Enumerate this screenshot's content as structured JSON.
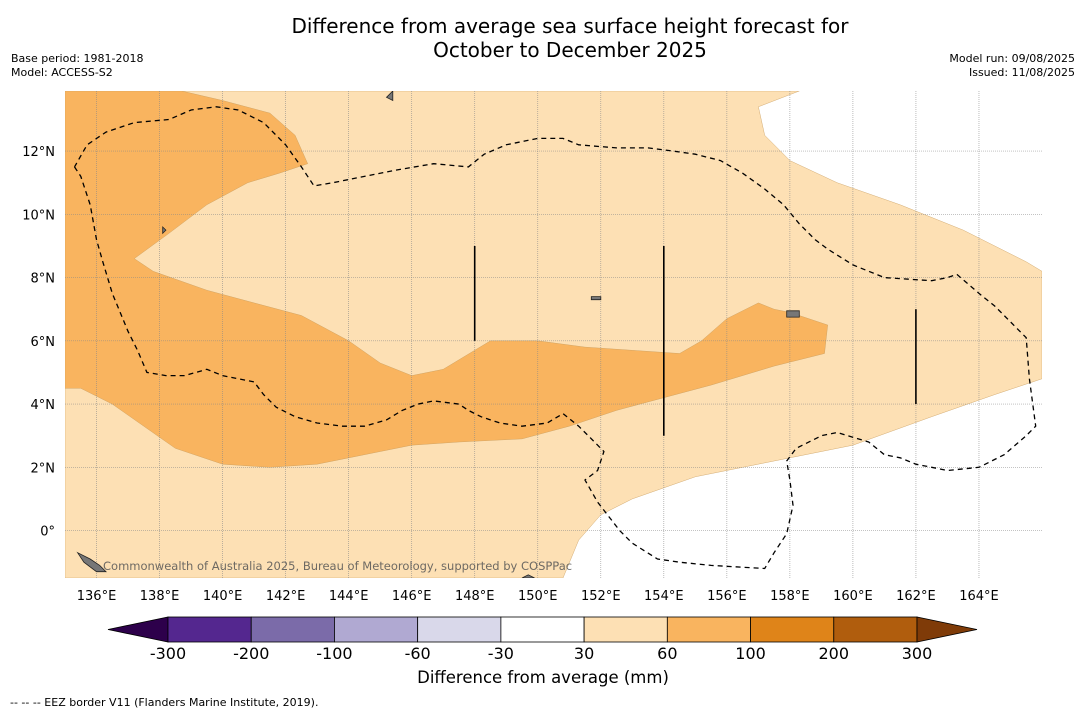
{
  "title_line1": "Difference from average sea surface height forecast for",
  "title_line2": "October to December 2025",
  "meta_left": {
    "base_period": "Base period: 1981-2018",
    "model": "Model: ACCESS-S2"
  },
  "meta_right": {
    "model_run": "Model run: 09/08/2025",
    "issued": "Issued: 11/08/2025"
  },
  "attribution": "Commonwealth of Australia 2025, Bureau of Meteorology, supported by COSPPac",
  "footnote": "--  --  -- EEZ border V11 (Flanders Marine Institute, 2019).",
  "colorbar": {
    "title": "Difference from average (mm)",
    "tick_labels": [
      "-300",
      "-200",
      "-100",
      "-60",
      "-30",
      "30",
      "60",
      "100",
      "200",
      "300"
    ],
    "bins": [
      {
        "from": -300,
        "to": -200,
        "color": "#54278f"
      },
      {
        "from": -200,
        "to": -100,
        "color": "#7b6ba9"
      },
      {
        "from": -100,
        "to": -60,
        "color": "#b0a9d2"
      },
      {
        "from": -60,
        "to": -30,
        "color": "#d9d8ea"
      },
      {
        "from": -30,
        "to": 30,
        "color": "#ffffff"
      },
      {
        "from": 30,
        "to": 60,
        "color": "#fde0b4"
      },
      {
        "from": 60,
        "to": 100,
        "color": "#f9b45f"
      },
      {
        "from": 100,
        "to": 200,
        "color": "#df8419"
      },
      {
        "from": 200,
        "to": 300,
        "color": "#b05d0d"
      }
    ],
    "under_color": "#2d004b",
    "over_color": "#7f3b08"
  },
  "chart_data": {
    "type": "heatmap",
    "projection": "lon-lat",
    "xlim": [
      135.0,
      166.0
    ],
    "ylim": [
      -1.5,
      13.9
    ],
    "x_ticks": [
      136,
      138,
      140,
      142,
      144,
      146,
      148,
      150,
      152,
      154,
      156,
      158,
      160,
      162,
      164
    ],
    "x_tick_labels": [
      "136°E",
      "138°E",
      "140°E",
      "142°E",
      "144°E",
      "146°E",
      "148°E",
      "150°E",
      "152°E",
      "154°E",
      "156°E",
      "158°E",
      "160°E",
      "162°E",
      "164°E"
    ],
    "y_ticks": [
      0,
      2,
      4,
      6,
      8,
      10,
      12
    ],
    "y_tick_labels": [
      "0°",
      "2°N",
      "4°N",
      "6°N",
      "8°N",
      "10°N",
      "12°N"
    ],
    "grid": true,
    "background_category": "-30 to 30",
    "regions": [
      {
        "category": "30 to 60",
        "color": "#fde0b4",
        "coords": [
          [
            135.0,
            13.9
          ],
          [
            158.3,
            13.9
          ],
          [
            157.0,
            13.4
          ],
          [
            157.2,
            12.5
          ],
          [
            158.0,
            11.7
          ],
          [
            159.5,
            11.0
          ],
          [
            161.5,
            10.3
          ],
          [
            163.5,
            9.5
          ],
          [
            165.5,
            8.5
          ],
          [
            166.0,
            8.2
          ],
          [
            166.0,
            4.8
          ],
          [
            164.5,
            4.3
          ],
          [
            162.5,
            3.6
          ],
          [
            160.0,
            2.7
          ],
          [
            157.5,
            2.2
          ],
          [
            155.0,
            1.7
          ],
          [
            153.0,
            1.0
          ],
          [
            152.0,
            0.5
          ],
          [
            151.3,
            -0.3
          ],
          [
            150.8,
            -1.5
          ],
          [
            135.0,
            -1.5
          ]
        ]
      },
      {
        "category": "60 to 100",
        "color": "#f9b45f",
        "coords": [
          [
            135.0,
            13.9
          ],
          [
            138.7,
            13.9
          ],
          [
            140.0,
            13.6
          ],
          [
            141.5,
            13.2
          ],
          [
            142.3,
            12.5
          ],
          [
            142.7,
            11.6
          ],
          [
            141.8,
            11.3
          ],
          [
            140.8,
            11.0
          ],
          [
            139.5,
            10.3
          ],
          [
            138.3,
            9.4
          ],
          [
            137.2,
            8.6
          ],
          [
            137.8,
            8.2
          ],
          [
            139.5,
            7.6
          ],
          [
            141.0,
            7.2
          ],
          [
            142.5,
            6.8
          ],
          [
            144.0,
            6.0
          ],
          [
            145.0,
            5.3
          ],
          [
            146.0,
            4.9
          ],
          [
            147.0,
            5.1
          ],
          [
            148.0,
            5.7
          ],
          [
            148.5,
            6.0
          ],
          [
            150.0,
            6.0
          ],
          [
            151.5,
            5.8
          ],
          [
            153.0,
            5.7
          ],
          [
            154.5,
            5.6
          ],
          [
            155.2,
            6.0
          ],
          [
            156.0,
            6.7
          ],
          [
            157.0,
            7.2
          ],
          [
            157.5,
            7.0
          ],
          [
            158.0,
            6.9
          ],
          [
            159.2,
            6.5
          ],
          [
            159.1,
            5.6
          ],
          [
            157.5,
            5.2
          ],
          [
            155.5,
            4.6
          ],
          [
            154.0,
            4.2
          ],
          [
            152.5,
            3.8
          ],
          [
            151.0,
            3.3
          ],
          [
            149.5,
            2.9
          ],
          [
            147.5,
            2.8
          ],
          [
            146.0,
            2.7
          ],
          [
            144.5,
            2.4
          ],
          [
            143.0,
            2.1
          ],
          [
            141.5,
            2.0
          ],
          [
            140.0,
            2.1
          ],
          [
            138.5,
            2.6
          ],
          [
            137.5,
            3.3
          ],
          [
            136.5,
            4.0
          ],
          [
            135.5,
            4.5
          ],
          [
            135.0,
            4.5
          ]
        ]
      }
    ],
    "eez_segments": [
      [
        [
          135.3,
          11.5
        ],
        [
          135.5,
          11.2
        ],
        [
          135.8,
          10.3
        ],
        [
          136.0,
          9.2
        ],
        [
          136.2,
          8.5
        ],
        [
          136.5,
          7.5
        ],
        [
          137.0,
          6.3
        ],
        [
          137.3,
          5.7
        ],
        [
          137.6,
          5.0
        ],
        [
          138.2,
          4.9
        ],
        [
          138.8,
          4.9
        ],
        [
          139.5,
          5.1
        ],
        [
          140.0,
          4.9
        ],
        [
          140.5,
          4.8
        ],
        [
          141.0,
          4.7
        ],
        [
          141.3,
          4.3
        ],
        [
          141.7,
          3.9
        ],
        [
          142.3,
          3.6
        ],
        [
          143.0,
          3.4
        ],
        [
          143.8,
          3.3
        ],
        [
          144.5,
          3.3
        ],
        [
          145.2,
          3.5
        ],
        [
          145.7,
          3.8
        ],
        [
          146.2,
          4.0
        ],
        [
          146.7,
          4.1
        ],
        [
          147.5,
          4.0
        ],
        [
          147.8,
          3.8
        ],
        [
          148.2,
          3.6
        ],
        [
          148.8,
          3.4
        ],
        [
          149.5,
          3.3
        ],
        [
          150.3,
          3.4
        ],
        [
          150.8,
          3.7
        ],
        [
          151.3,
          3.3
        ],
        [
          151.8,
          2.8
        ],
        [
          152.1,
          2.5
        ],
        [
          151.9,
          1.9
        ],
        [
          151.5,
          1.6
        ],
        [
          151.9,
          0.9
        ],
        [
          152.6,
          0.0
        ],
        [
          153.0,
          -0.4
        ],
        [
          153.8,
          -0.9
        ],
        [
          154.5,
          -1.0
        ],
        [
          155.5,
          -1.1
        ],
        [
          157.2,
          -1.2
        ],
        [
          157.5,
          -0.7
        ],
        [
          157.9,
          -0.1
        ],
        [
          158.1,
          0.8
        ],
        [
          158.0,
          1.6
        ],
        [
          157.9,
          2.2
        ],
        [
          158.2,
          2.6
        ],
        [
          158.8,
          2.9
        ],
        [
          159.0,
          3.0
        ],
        [
          159.5,
          3.1
        ],
        [
          160.5,
          2.8
        ],
        [
          161.0,
          2.4
        ],
        [
          161.5,
          2.3
        ],
        [
          162.0,
          2.1
        ],
        [
          162.5,
          2.0
        ],
        [
          163.0,
          1.9
        ],
        [
          164.0,
          2.0
        ],
        [
          164.8,
          2.4
        ],
        [
          165.5,
          3.0
        ],
        [
          165.8,
          3.3
        ],
        [
          165.6,
          4.8
        ],
        [
          165.5,
          6.1
        ],
        [
          165.0,
          6.6
        ],
        [
          164.5,
          7.1
        ],
        [
          164.0,
          7.5
        ],
        [
          163.3,
          8.1
        ],
        [
          163.0,
          8.0
        ],
        [
          162.5,
          7.9
        ],
        [
          161.0,
          8.0
        ],
        [
          160.0,
          8.4
        ],
        [
          159.2,
          8.9
        ],
        [
          158.8,
          9.2
        ],
        [
          158.3,
          9.7
        ],
        [
          157.8,
          10.3
        ],
        [
          157.2,
          10.8
        ],
        [
          156.5,
          11.3
        ],
        [
          155.8,
          11.7
        ],
        [
          155.0,
          11.9
        ],
        [
          154.3,
          12.0
        ],
        [
          153.5,
          12.1
        ],
        [
          152.5,
          12.1
        ],
        [
          151.3,
          12.2
        ],
        [
          150.8,
          12.4
        ],
        [
          150.0,
          12.4
        ],
        [
          149.0,
          12.2
        ],
        [
          148.3,
          11.9
        ],
        [
          147.8,
          11.5
        ],
        [
          146.7,
          11.6
        ],
        [
          145.5,
          11.4
        ],
        [
          144.5,
          11.2
        ],
        [
          143.5,
          11.0
        ],
        [
          142.9,
          10.9
        ],
        [
          142.5,
          11.5
        ],
        [
          142.0,
          12.2
        ],
        [
          141.3,
          12.9
        ],
        [
          140.5,
          13.3
        ],
        [
          139.8,
          13.4
        ],
        [
          139.0,
          13.3
        ],
        [
          138.3,
          13.0
        ],
        [
          137.2,
          12.9
        ],
        [
          136.3,
          12.6
        ],
        [
          135.7,
          12.2
        ],
        [
          135.3,
          11.5
        ]
      ]
    ],
    "eez_lines": [
      [
        [
          148.0,
          9.0
        ],
        [
          148.0,
          6.0
        ]
      ],
      [
        [
          154.0,
          9.0
        ],
        [
          154.0,
          3.0
        ]
      ],
      [
        [
          162.0,
          7.0
        ],
        [
          162.0,
          4.0
        ]
      ]
    ],
    "islands": [
      [
        [
          145.2,
          13.7
        ],
        [
          145.4,
          13.9
        ],
        [
          145.4,
          13.6
        ]
      ],
      [
        [
          135.4,
          -0.7
        ],
        [
          135.8,
          -0.9
        ],
        [
          136.1,
          -1.1
        ],
        [
          136.3,
          -1.3
        ],
        [
          136.0,
          -1.3
        ],
        [
          135.6,
          -1.0
        ]
      ],
      [
        [
          149.7,
          -1.4
        ],
        [
          149.9,
          -1.5
        ],
        [
          149.5,
          -1.5
        ]
      ],
      [
        [
          157.9,
          6.95
        ],
        [
          158.3,
          6.95
        ],
        [
          158.3,
          6.75
        ],
        [
          157.9,
          6.75
        ]
      ],
      [
        [
          151.7,
          7.4
        ],
        [
          152.0,
          7.4
        ],
        [
          152.0,
          7.3
        ],
        [
          151.7,
          7.3
        ]
      ],
      [
        [
          138.1,
          9.6
        ],
        [
          138.2,
          9.5
        ],
        [
          138.1,
          9.4
        ]
      ]
    ]
  }
}
